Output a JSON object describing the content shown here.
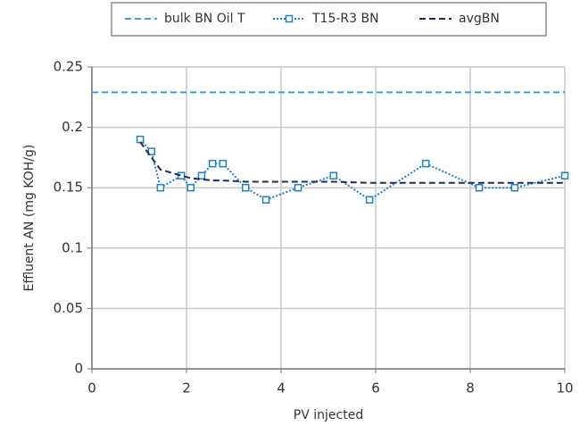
{
  "chart_data": {
    "type": "line",
    "xlabel": "PV injected",
    "ylabel": "Effluent AN (mg KOH/g)",
    "xlim": [
      0,
      10
    ],
    "xticks": [
      0,
      2,
      4,
      6,
      8,
      10
    ],
    "ylim": [
      0,
      0.25
    ],
    "yticks": [
      0,
      0.05,
      0.1,
      0.15,
      0.2,
      0.25
    ],
    "grid": true,
    "legend": "top",
    "series": [
      {
        "name": "bulk BN Oil T",
        "color": "#3b9bdc",
        "dash": "dashed",
        "marker": null,
        "x": [
          0,
          10
        ],
        "values": [
          0.229,
          0.229
        ]
      },
      {
        "name": "T15-R3 BN",
        "color": "#1f80c4",
        "dash": "dotted",
        "marker": "square",
        "x": [
          1.02,
          1.26,
          1.45,
          1.89,
          2.09,
          2.32,
          2.55,
          2.77,
          3.25,
          3.68,
          4.36,
          5.11,
          5.87,
          7.06,
          8.19,
          8.94,
          10
        ],
        "values": [
          0.19,
          0.18,
          0.15,
          0.16,
          0.15,
          0.16,
          0.17,
          0.17,
          0.15,
          0.14,
          0.15,
          0.16,
          0.14,
          0.17,
          0.15,
          0.15,
          0.16
        ]
      },
      {
        "name": "avgBN",
        "color": "#1d2b5c",
        "dash": "dashed",
        "marker": null,
        "x": [
          1.02,
          1.26,
          1.45,
          1.89,
          2.09,
          2.32,
          2.55,
          2.77,
          3.25,
          3.68,
          4.36,
          5.11,
          5.87,
          7.06,
          8.19,
          8.94,
          10
        ],
        "values": [
          0.188,
          0.175,
          0.165,
          0.16,
          0.158,
          0.157,
          0.156,
          0.156,
          0.155,
          0.155,
          0.155,
          0.155,
          0.154,
          0.154,
          0.154,
          0.154,
          0.154
        ]
      }
    ]
  }
}
